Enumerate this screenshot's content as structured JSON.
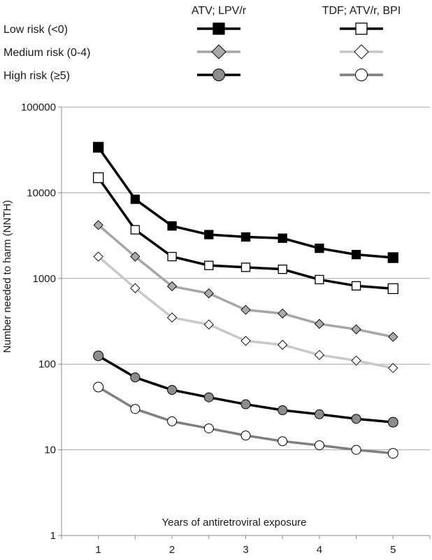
{
  "chart_data": {
    "type": "line",
    "title": "",
    "xlabel": "Years of antiretroviral exposure",
    "ylabel": "Number needed to harm (NNTH)",
    "yscale": "log",
    "ylim": [
      1,
      100000
    ],
    "xlim": [
      0.5,
      5.5
    ],
    "y_ticks": [
      1,
      10,
      100,
      1000,
      10000,
      100000
    ],
    "y_tick_labels": [
      "1",
      "10",
      "100",
      "1000",
      "10000",
      "100000"
    ],
    "x_ticks": [
      1,
      2,
      3,
      4,
      5
    ],
    "x_tick_labels": [
      "1",
      "2",
      "3",
      "4",
      "5"
    ],
    "grid": "horizontal",
    "legend": {
      "placement": "top",
      "column_headers": [
        "ATV; LPV/r",
        "TDF; ATV/r, BPI"
      ],
      "row_labels": [
        "Low risk (<0)",
        "Medium risk (0-4)",
        "High risk (≥5)"
      ]
    },
    "x": [
      1,
      1.5,
      2,
      2.5,
      3,
      3.5,
      4,
      4.5,
      5
    ],
    "series": [
      {
        "regimen": "ATV; LPV/r",
        "risk": "Low risk (<0)",
        "marker": "square",
        "fill": "#000000",
        "line": "#000000",
        "values": [
          34000,
          8400,
          4100,
          3250,
          3050,
          2950,
          2250,
          1900,
          1750
        ]
      },
      {
        "regimen": "TDF; ATV/r, BPI",
        "risk": "Low risk (<0)",
        "marker": "square",
        "fill": "#ffffff",
        "line": "#000000",
        "values": [
          15000,
          3700,
          1800,
          1420,
          1350,
          1280,
          970,
          820,
          760
        ]
      },
      {
        "regimen": "ATV; LPV/r",
        "risk": "Medium risk (0-4)",
        "marker": "diamond",
        "fill": "#aaaaaa",
        "line": "#a6a6a6",
        "values": [
          4200,
          1800,
          810,
          670,
          430,
          390,
          295,
          255,
          208
        ]
      },
      {
        "regimen": "TDF; ATV/r, BPI",
        "risk": "Medium risk (0-4)",
        "marker": "diamond",
        "fill": "#ffffff",
        "line": "#c8c8c8",
        "values": [
          1800,
          770,
          350,
          290,
          187,
          168,
          128,
          110,
          90
        ]
      },
      {
        "regimen": "ATV; LPV/r",
        "risk": "High risk (≥5)",
        "marker": "circle",
        "fill": "#8c8c8c",
        "line": "#000000",
        "values": [
          125,
          70,
          50,
          41,
          34,
          29,
          26,
          23,
          21
        ]
      },
      {
        "regimen": "TDF; ATV/r, BPI",
        "risk": "High risk (≥5)",
        "marker": "circle",
        "fill": "#ffffff",
        "line": "#7f7f7f",
        "values": [
          54,
          30,
          21.5,
          17.8,
          14.7,
          12.6,
          11.3,
          10,
          9.1
        ]
      }
    ]
  }
}
